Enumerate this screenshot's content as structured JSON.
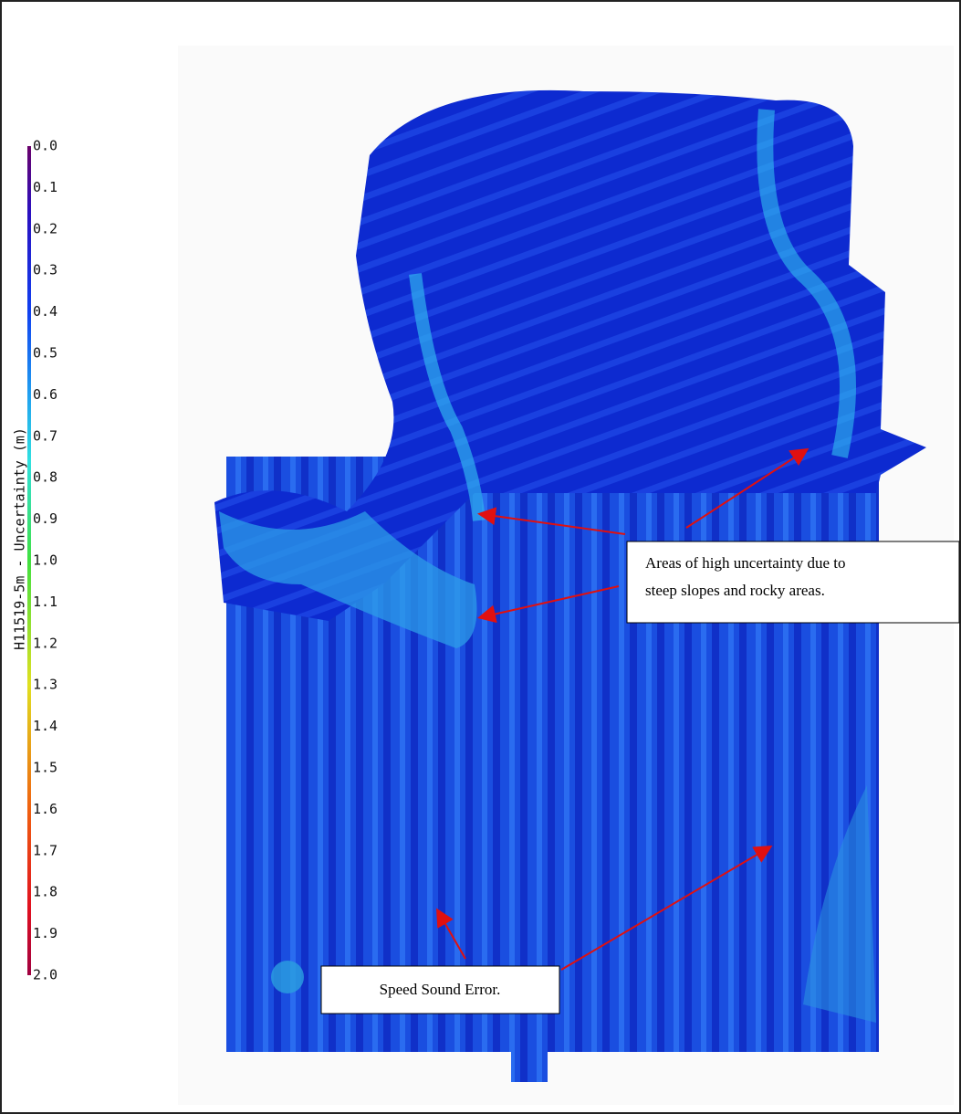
{
  "colorbar": {
    "label": "H11519-5m - Uncertainty (m)",
    "ticks": [
      "0.0",
      "0.1",
      "0.2",
      "0.3",
      "0.4",
      "0.5",
      "0.6",
      "0.7",
      "0.8",
      "0.9",
      "1.0",
      "1.1",
      "1.2",
      "1.3",
      "1.4",
      "1.5",
      "1.6",
      "1.7",
      "1.8",
      "1.9",
      "2.0"
    ]
  },
  "annotations": [
    {
      "lines": [
        "Areas of high uncertainty due to",
        "steep slopes and rocky areas."
      ]
    },
    {
      "lines": [
        "Speed Sound Error."
      ]
    }
  ]
}
